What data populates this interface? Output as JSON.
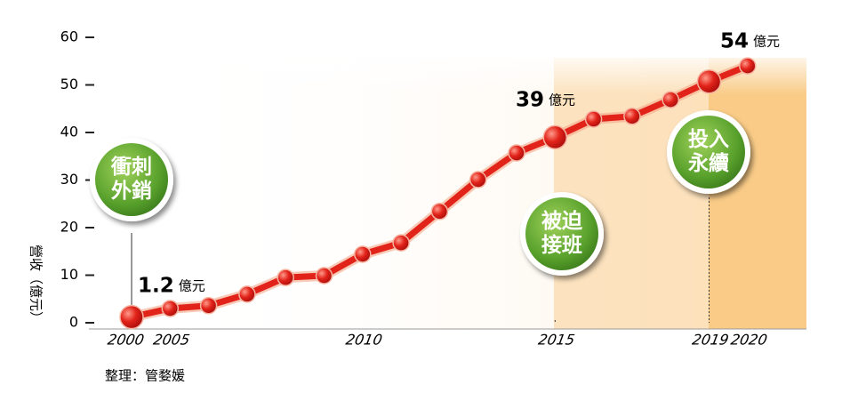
{
  "chart_data": {
    "type": "line",
    "y_label": "營收（億元）",
    "categories": [
      "2000",
      "2005",
      null,
      null,
      null,
      null,
      "2010",
      null,
      null,
      null,
      null,
      "2015",
      null,
      null,
      null,
      "2019",
      "2020"
    ],
    "series": [
      {
        "name": "營收",
        "color": "#e2231a",
        "values": [
          1.2,
          3.0,
          3.6,
          6.0,
          9.5,
          9.9,
          14.4,
          16.8,
          23.4,
          30.1,
          35.7,
          39,
          42.8,
          43.4,
          46.9,
          50.7,
          54
        ]
      }
    ],
    "data_label_unit": "億元",
    "ylim": [
      0,
      60
    ],
    "yticks": [
      0,
      10,
      20,
      30,
      40,
      50,
      60
    ],
    "callouts": [
      [
        "衝刺",
        "外銷"
      ],
      [
        "被迫",
        "接班"
      ],
      [
        "投入",
        "永續"
      ]
    ],
    "source": "整理：管婺媛"
  }
}
